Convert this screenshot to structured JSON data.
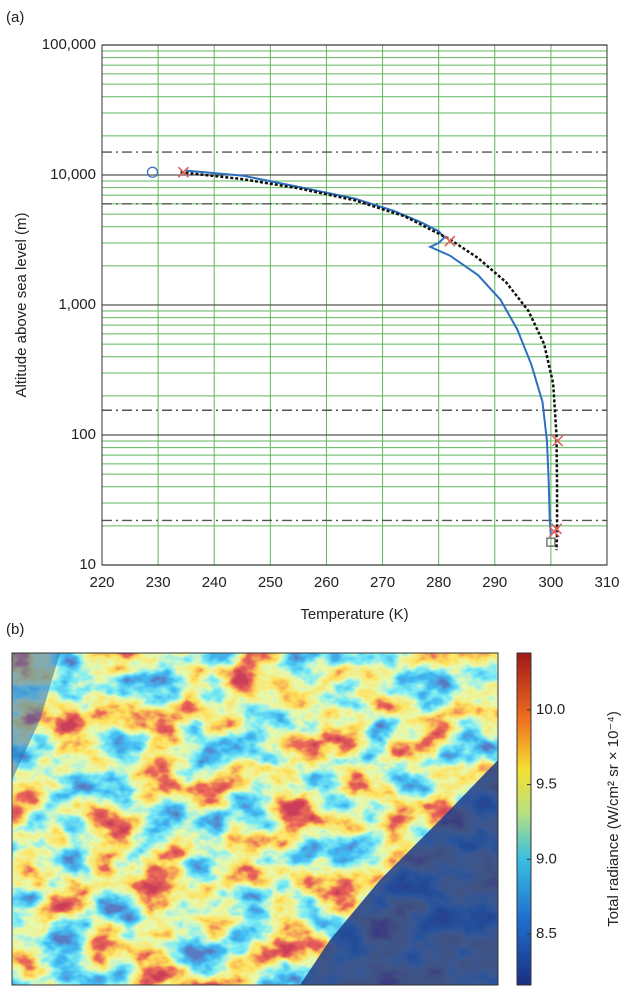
{
  "chart_data": [
    {
      "type": "line",
      "panel_label": "(a)",
      "x_label": "Temperature (K)",
      "y_label": "Altitude above sea level (m)",
      "xlim": [
        220,
        310
      ],
      "xticks": [
        220,
        230,
        240,
        250,
        260,
        270,
        280,
        290,
        300,
        310
      ],
      "ylim": [
        10,
        100000
      ],
      "yscale": "log",
      "yticks": [
        10,
        100,
        {
          "value": 1000,
          "label": "1,000"
        },
        {
          "value": 10000,
          "label": "10,000"
        },
        {
          "value": 100000,
          "label": "100,000"
        }
      ],
      "grid": true,
      "grid_color": "#5cb85c",
      "reference_lines": [
        15000,
        6000,
        155,
        22
      ],
      "series": [
        {
          "color": "#2f6fc0",
          "style": "solid",
          "x": [
            235,
            245,
            255,
            265,
            272,
            277,
            280,
            281,
            280,
            278.5,
            282,
            287,
            291,
            294,
            296.5,
            298.5,
            299.3,
            299.6,
            299.8,
            300
          ],
          "values": [
            10800,
            9900,
            8100,
            6600,
            5300,
            4300,
            3700,
            3300,
            3000,
            2800,
            2400,
            1700,
            1100,
            650,
            350,
            180,
            90,
            45,
            22,
            17
          ]
        },
        {
          "color": "#111111",
          "style": "dotted",
          "x": [
            234,
            245,
            255,
            265,
            274,
            282,
            287,
            292,
            296,
            298.8,
            300.4,
            301,
            301.1,
            301.1,
            301
          ],
          "values": [
            10500,
            9300,
            7900,
            6400,
            4800,
            3200,
            2300,
            1500,
            900,
            500,
            250,
            100,
            40,
            18,
            13
          ]
        }
      ],
      "markers": [
        {
          "shape": "circle",
          "color": "#3a6fc4",
          "x": [
            229
          ],
          "values": [
            10500
          ]
        },
        {
          "shape": "cross",
          "color": "#e0605a",
          "x": [
            234.5,
            282,
            301.2,
            300.6,
            301
          ],
          "values": [
            10500,
            3100,
            90,
            18,
            19
          ]
        },
        {
          "shape": "square",
          "color": "#666666",
          "x": [
            300
          ],
          "values": [
            15
          ]
        }
      ]
    },
    {
      "type": "heatmap",
      "panel_label": "(b)",
      "colorbar_label": "Total radiance (W/cm² sr × 10⁻⁴)",
      "clim": [
        8.16,
        10.38
      ],
      "cticks": [
        {
          "value": 10,
          "label": "10.0"
        },
        9.5,
        {
          "value": 9,
          "label": "9.0"
        },
        8.5
      ]
    }
  ]
}
